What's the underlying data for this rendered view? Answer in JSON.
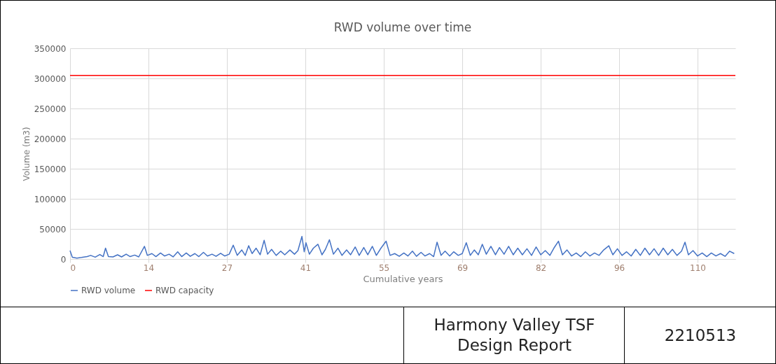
{
  "chart_data": {
    "type": "line",
    "title": "RWD volume over time",
    "xlabel": "Cumulative years",
    "ylabel": "Volume (m3)",
    "xlim": [
      0,
      116.2
    ],
    "xticks": [
      0,
      {
        "value": 13.7,
        "label": "14"
      },
      {
        "value": 27.4,
        "label": "27"
      },
      {
        "value": 41.1,
        "label": "41"
      },
      {
        "value": 54.8,
        "label": "55"
      },
      {
        "value": 68.5,
        "label": "69"
      },
      {
        "value": 82.2,
        "label": "82"
      },
      {
        "value": 95.9,
        "label": "96"
      },
      {
        "value": 109.6,
        "label": "110"
      }
    ],
    "ylim": [
      0,
      350000
    ],
    "yticks": [
      0,
      50000,
      100000,
      150000,
      200000,
      250000,
      300000,
      350000
    ],
    "grid": true,
    "legend": "bottom",
    "series": [
      {
        "name": "RWD volume",
        "color": "#4472c4",
        "x": [
          0,
          0.4,
          1.2,
          2.0,
          3.0,
          3.6,
          4.4,
          5.2,
          5.8,
          6.2,
          6.7,
          7.5,
          8.3,
          9.0,
          9.8,
          10.5,
          11.3,
          12.0,
          13.0,
          13.5,
          14.3,
          15.0,
          15.8,
          16.5,
          17.3,
          18.0,
          18.8,
          19.5,
          20.3,
          21.0,
          21.8,
          22.5,
          23.3,
          24.0,
          24.8,
          25.5,
          26.3,
          27.0,
          27.8,
          28.5,
          29.2,
          30.0,
          30.6,
          31.2,
          31.8,
          32.5,
          33.2,
          33.9,
          34.5,
          35.2,
          36.0,
          36.8,
          37.5,
          38.4,
          39.2,
          39.8,
          40.5,
          40.9,
          41.2,
          41.8,
          42.5,
          43.3,
          44.0,
          44.6,
          45.3,
          46.0,
          46.8,
          47.5,
          48.3,
          49.0,
          49.8,
          50.5,
          51.3,
          52.0,
          52.8,
          53.5,
          54.3,
          55.2,
          55.9,
          56.7,
          57.5,
          58.3,
          59.0,
          59.8,
          60.5,
          61.3,
          62.0,
          62.8,
          63.5,
          64.1,
          64.8,
          65.5,
          66.3,
          67.0,
          67.8,
          68.5,
          69.2,
          69.9,
          70.6,
          71.3,
          72.0,
          72.7,
          73.5,
          74.3,
          75.0,
          75.8,
          76.6,
          77.4,
          78.2,
          79.0,
          79.8,
          80.6,
          81.4,
          82.2,
          83.0,
          83.8,
          84.5,
          85.3,
          86.0,
          86.8,
          87.6,
          88.4,
          89.2,
          90.0,
          90.8,
          91.6,
          92.4,
          93.2,
          94.1,
          94.8,
          95.6,
          96.4,
          97.2,
          98.0,
          98.8,
          99.6,
          100.4,
          101.2,
          102.0,
          102.8,
          103.6,
          104.4,
          105.2,
          106.0,
          106.8,
          107.4,
          108.0,
          108.8,
          109.6,
          110.4,
          111.2,
          112.0,
          112.8,
          113.6,
          114.4,
          115.2,
          116.0
        ],
        "values": [
          14000,
          3000,
          1500,
          2500,
          4000,
          6000,
          3000,
          7500,
          4000,
          18000,
          4000,
          3500,
          7000,
          3500,
          8000,
          4000,
          6500,
          3500,
          21000,
          6000,
          9000,
          4000,
          10000,
          5000,
          8000,
          3500,
          12000,
          4000,
          10000,
          4500,
          9000,
          4000,
          11000,
          5000,
          8000,
          4500,
          9500,
          5000,
          8000,
          23000,
          6000,
          15000,
          6000,
          22000,
          9000,
          18000,
          7000,
          31000,
          8000,
          16000,
          6000,
          13000,
          7000,
          15000,
          8000,
          14000,
          37500,
          12000,
          27000,
          8000,
          18000,
          24500,
          7000,
          16000,
          32000,
          8000,
          18000,
          6000,
          15000,
          7000,
          20000,
          6000,
          19000,
          7000,
          21000,
          6000,
          18000,
          29600,
          6000,
          9000,
          4500,
          10000,
          5000,
          13000,
          4500,
          11000,
          5000,
          9000,
          4000,
          28000,
          6000,
          13000,
          5000,
          12000,
          6000,
          9000,
          27000,
          6000,
          15000,
          7000,
          24500,
          8000,
          21000,
          7000,
          19000,
          8000,
          21000,
          7000,
          18000,
          7000,
          17000,
          6000,
          20000,
          7000,
          14000,
          6000,
          18000,
          29600,
          7000,
          15000,
          5000,
          10000,
          4000,
          12000,
          5000,
          10000,
          6000,
          15000,
          22000,
          7000,
          17000,
          6000,
          12000,
          5000,
          16000,
          6000,
          18000,
          7000,
          17000,
          6000,
          18000,
          7000,
          16000,
          6000,
          13000,
          28000,
          7000,
          14000,
          5000,
          10000,
          4000,
          10000,
          5000,
          9000,
          4500,
          13000,
          9000
        ]
      },
      {
        "name": "RWD capacity",
        "color": "#ff0000",
        "x": [
          0,
          116.2
        ],
        "values": [
          305000,
          305000
        ]
      }
    ],
    "annotations": [
      "Harmony Valley TSF\nDesign Report",
      "2210513"
    ]
  }
}
